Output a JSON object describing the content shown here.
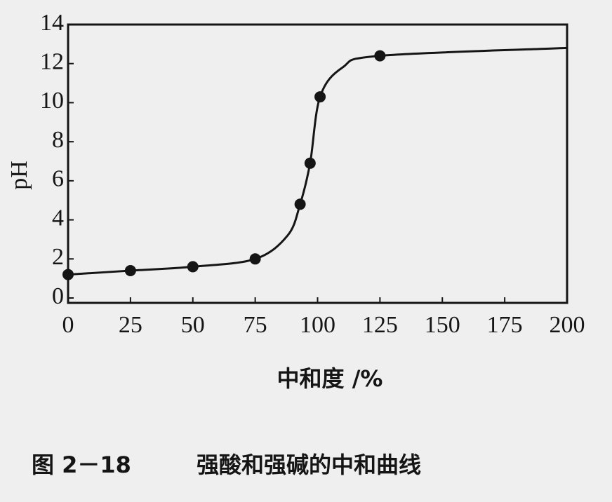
{
  "chart_data": {
    "type": "line",
    "y_label": "pH",
    "x_label": "中和度 /%",
    "figure_number": "图 2－18",
    "caption": "强酸和强碱的中和曲线",
    "x": [
      0,
      25,
      50,
      75,
      93,
      97,
      101,
      125
    ],
    "values": [
      1.2,
      1.4,
      1.6,
      2.0,
      4.8,
      6.9,
      10.3,
      12.4
    ],
    "curve": {
      "x": [
        0,
        25,
        50,
        75,
        88,
        93,
        97,
        101,
        110,
        125,
        200
      ],
      "values": [
        1.2,
        1.4,
        1.6,
        2.0,
        3.2,
        4.8,
        6.9,
        10.3,
        11.8,
        12.4,
        12.8
      ]
    },
    "color": "#151515",
    "xlim": [
      0,
      200
    ],
    "xticks": [
      0,
      25,
      50,
      75,
      100,
      125,
      150,
      175,
      200
    ],
    "ylim": [
      0,
      14
    ],
    "yticks": [
      0,
      2,
      4,
      6,
      8,
      10,
      12,
      14
    ]
  }
}
